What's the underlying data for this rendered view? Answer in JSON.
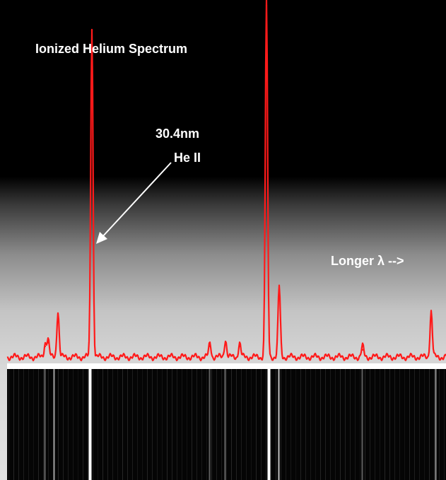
{
  "chart_data": {
    "type": "line",
    "title": "Ionized Helium Spectrum",
    "xlabel": "",
    "ylabel": "",
    "direction_label": "Longer λ -->",
    "ylim": [
      0,
      100
    ],
    "annotations": [
      {
        "wavelength": "30.4nm",
        "species": "He II",
        "peak_index": 2
      }
    ],
    "series": [
      {
        "color": "#ff1a1a",
        "peaks": [
          {
            "x": 64,
            "y": 4
          },
          {
            "x": 68,
            "y": 5
          },
          {
            "x": 82,
            "y": 13
          },
          {
            "x": 130,
            "y": 93
          },
          {
            "x": 297,
            "y": 4
          },
          {
            "x": 319,
            "y": 5
          },
          {
            "x": 339,
            "y": 4
          },
          {
            "x": 377,
            "y": 100
          },
          {
            "x": 395,
            "y": 20
          },
          {
            "x": 513,
            "y": 3
          },
          {
            "x": 610,
            "y": 13
          }
        ]
      }
    ],
    "spectrogram_lines": [
      {
        "x": 64,
        "intensity": 0.3
      },
      {
        "x": 77,
        "intensity": 0.55
      },
      {
        "x": 127,
        "intensity": 1.0
      },
      {
        "x": 297,
        "intensity": 0.25
      },
      {
        "x": 319,
        "intensity": 0.3
      },
      {
        "x": 380,
        "intensity": 1.0
      },
      {
        "x": 395,
        "intensity": 0.7
      },
      {
        "x": 513,
        "intensity": 0.25
      },
      {
        "x": 617,
        "intensity": 0.5
      }
    ]
  }
}
